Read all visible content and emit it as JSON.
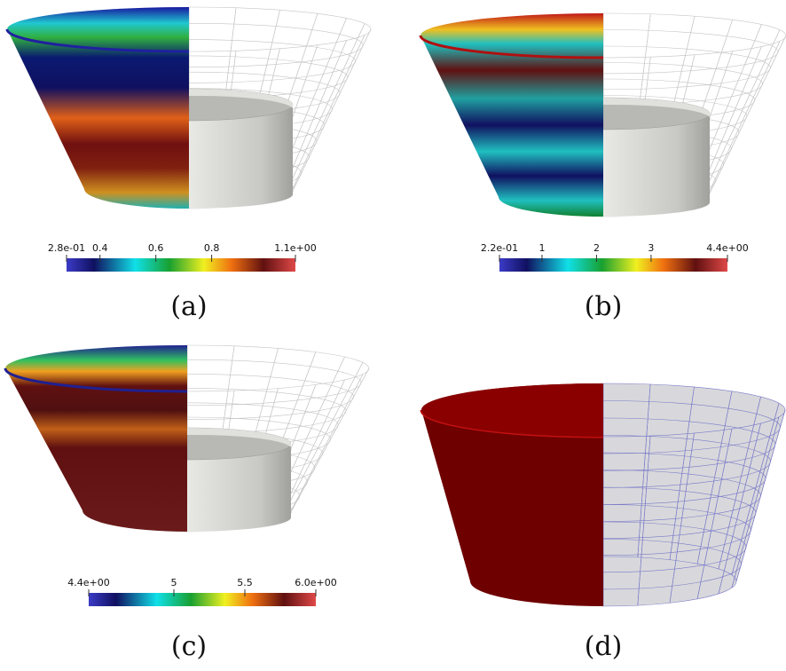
{
  "panels": [
    {
      "label": "(a)",
      "colorbar": {
        "ticks": [
          {
            "value": 0.28,
            "label": "2.8e-01"
          },
          0.4,
          0.6,
          0.8,
          {
            "value": 1.1,
            "label": "1.1e+00"
          }
        ]
      }
    },
    {
      "label": "(b)",
      "colorbar": {
        "ticks": [
          {
            "value": 0.22,
            "label": "2.2e-01"
          },
          1,
          2,
          3,
          {
            "value": 4.4,
            "label": "4.4e+00"
          }
        ]
      }
    },
    {
      "label": "(c)",
      "colorbar": {
        "ticks": [
          {
            "value": 4.4,
            "label": "4.4e+00"
          },
          5,
          5.5,
          {
            "value": 6,
            "label": "6.0e+00"
          }
        ]
      }
    },
    {
      "label": "(d)"
    }
  ]
}
